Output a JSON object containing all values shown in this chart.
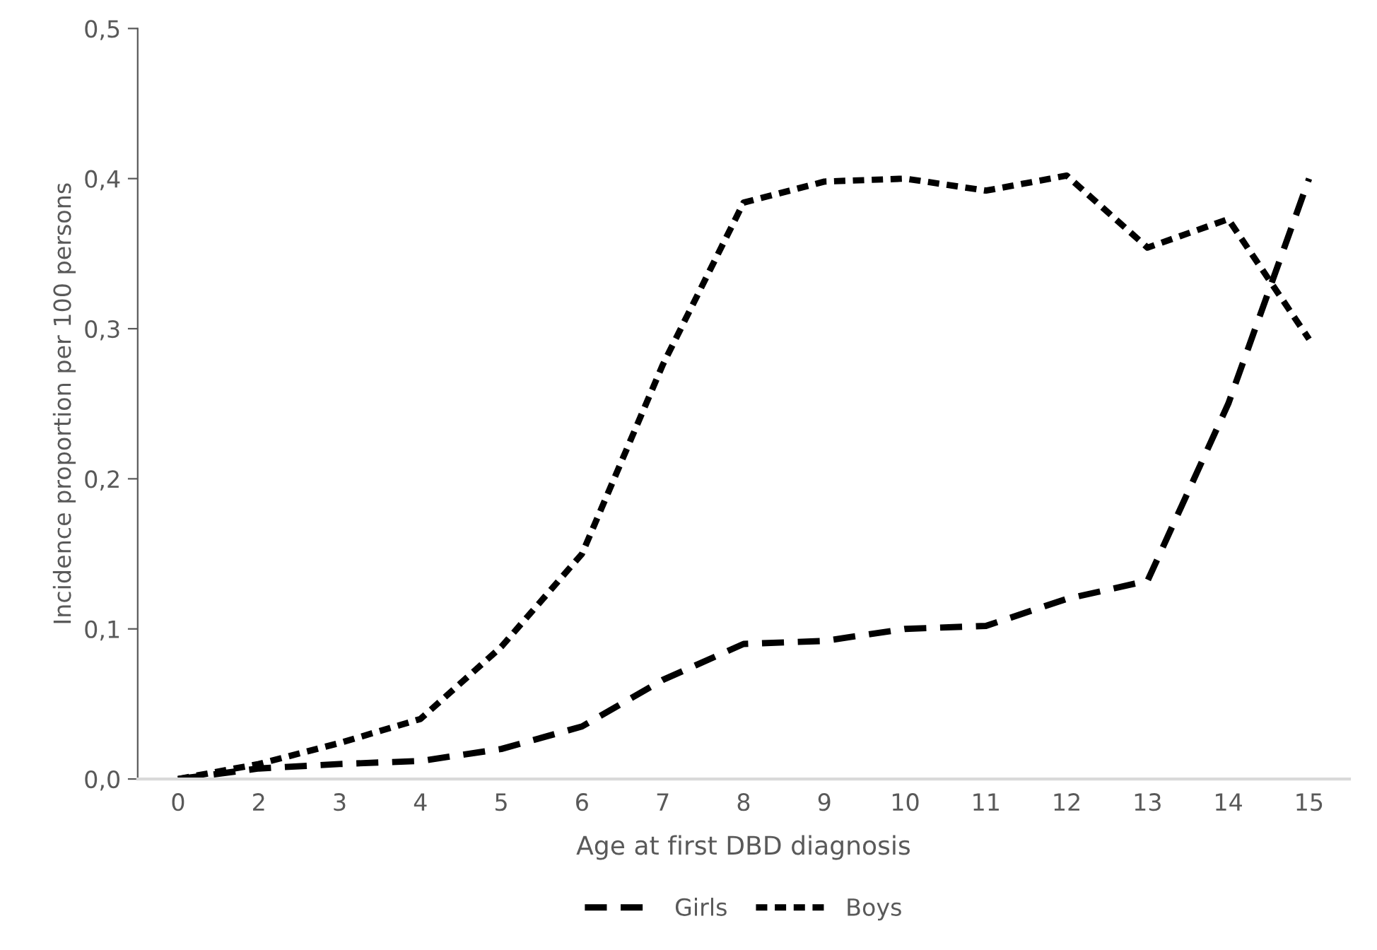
{
  "chart_data": {
    "type": "line",
    "xlabel": "Age at first DBD diagnosis",
    "ylabel": "Incidence proportion per 100 persons",
    "categories": [
      "0",
      "2",
      "3",
      "4",
      "5",
      "6",
      "7",
      "8",
      "9",
      "10",
      "11",
      "12",
      "13",
      "14",
      "15"
    ],
    "series": [
      {
        "name": "Girls",
        "color": "#000000",
        "values": [
          0,
          0.007,
          0.01,
          0.012,
          0.02,
          0.035,
          0.066,
          0.09,
          0.092,
          0.1,
          0.102,
          0.12,
          0.132,
          0.25,
          0.4
        ]
      },
      {
        "name": "Boys",
        "color": "#000000",
        "values": [
          0,
          0.01,
          0.024,
          0.04,
          0.088,
          0.15,
          0.276,
          0.384,
          0.398,
          0.4,
          0.392,
          0.402,
          0.354,
          0.373,
          0.293
        ]
      }
    ],
    "ylim": [
      0,
      0.5
    ],
    "yticks": [
      {
        "value": 0,
        "label": "0,0"
      },
      {
        "value": 0.1,
        "label": "0,1"
      },
      {
        "value": 0.2,
        "label": "0,2"
      },
      {
        "value": 0.3,
        "label": "0,3"
      },
      {
        "value": 0.4,
        "label": "0,4"
      },
      {
        "value": 0.5,
        "label": "0,5"
      }
    ],
    "legend": "bottom",
    "line_style": "dashed",
    "marker": "none"
  }
}
